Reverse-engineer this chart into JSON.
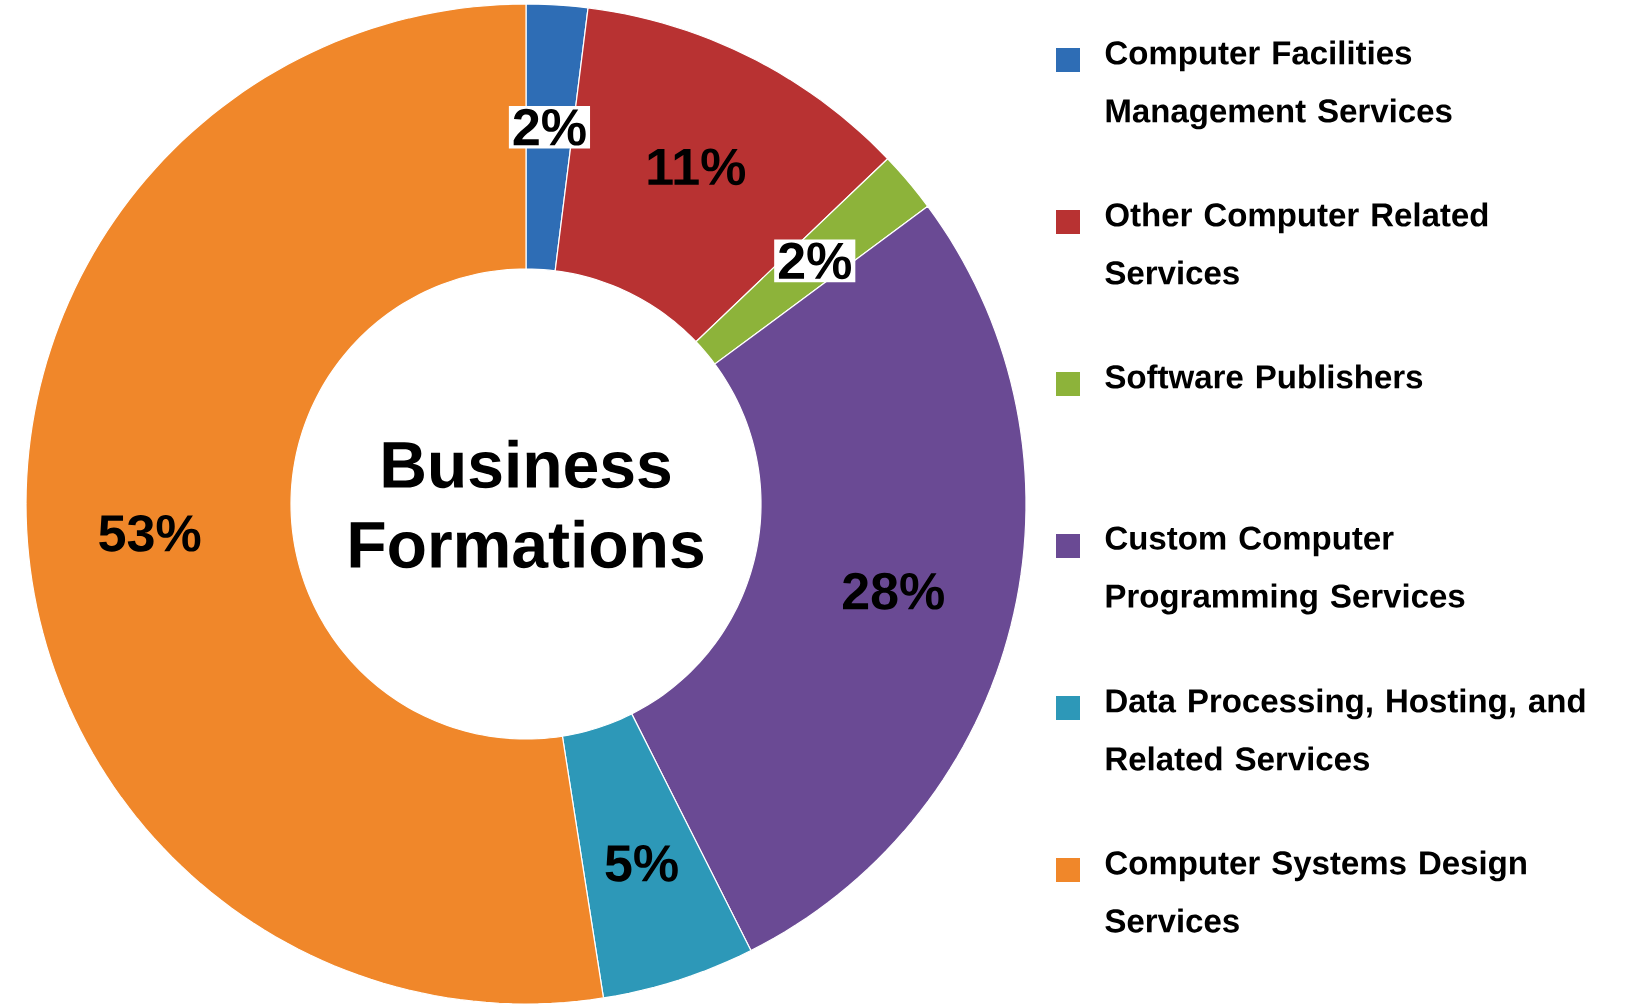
{
  "chart_data": {
    "type": "donut",
    "title": "Business Formations",
    "categories": [
      "Computer  Facilities Management Services",
      "Other Computer  Related Services",
      "Software Publishers",
      "Custom Computer Programming Services",
      "Data Processing,  Hosting, and Related Services",
      "Computer  Systems Design Services"
    ],
    "values": [
      2,
      11,
      2,
      28,
      5,
      53
    ],
    "value_labels": [
      "2%",
      "11%",
      "2%",
      "28%",
      "5%",
      "53%"
    ],
    "colors": [
      "#2e6db5",
      "#b83232",
      "#8db33a",
      "#6a4a94",
      "#2d98b8",
      "#f0872a"
    ],
    "legend": "right"
  }
}
